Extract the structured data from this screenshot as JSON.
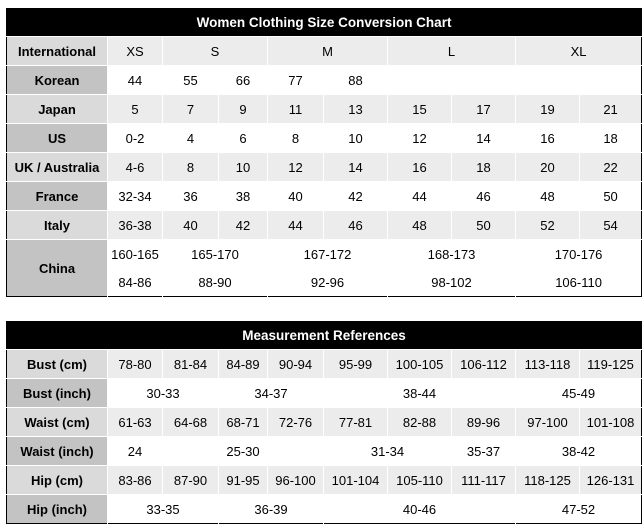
{
  "size_chart": {
    "title": "Women Clothing Size Conversion Chart",
    "rows": [
      {
        "label": "International",
        "values": [
          "XS",
          "S",
          "M",
          "L",
          "XL"
        ]
      },
      {
        "label": "Korean",
        "values": [
          "44",
          "55",
          "66",
          "77",
          "88",
          "",
          "",
          "",
          ""
        ]
      },
      {
        "label": "Japan",
        "values": [
          "5",
          "7",
          "9",
          "11",
          "13",
          "15",
          "17",
          "19",
          "21"
        ]
      },
      {
        "label": "US",
        "values": [
          "0-2",
          "4",
          "6",
          "8",
          "10",
          "12",
          "14",
          "16",
          "18"
        ]
      },
      {
        "label": "UK / Australia",
        "values": [
          "4-6",
          "8",
          "10",
          "12",
          "14",
          "16",
          "18",
          "20",
          "22"
        ]
      },
      {
        "label": "France",
        "values": [
          "32-34",
          "36",
          "38",
          "40",
          "42",
          "44",
          "46",
          "48",
          "50"
        ]
      },
      {
        "label": "Italy",
        "values": [
          "36-38",
          "40",
          "42",
          "44",
          "46",
          "48",
          "50",
          "52",
          "54"
        ]
      },
      {
        "label": "China",
        "values": [
          "160-165",
          "165-170",
          "167-172",
          "168-173",
          "170-176"
        ],
        "values2": [
          "84-86",
          "88-90",
          "92-96",
          "98-102",
          "106-110"
        ]
      }
    ]
  },
  "measurements": {
    "title": "Measurement References",
    "rows": [
      {
        "label": "Bust (cm)",
        "values": [
          "78-80",
          "81-84",
          "84-89",
          "90-94",
          "95-99",
          "100-105",
          "106-112",
          "113-118",
          "119-125"
        ]
      },
      {
        "label": "Bust (inch)",
        "values": [
          "30-33",
          "34-37",
          "38-44",
          "45-49"
        ]
      },
      {
        "label": "Waist (cm)",
        "values": [
          "61-63",
          "64-68",
          "68-71",
          "72-76",
          "77-81",
          "82-88",
          "89-96",
          "97-100",
          "101-108"
        ]
      },
      {
        "label": "Waist (inch)",
        "values": [
          "24",
          "25-30",
          "31-34",
          "35-37",
          "38-42"
        ]
      },
      {
        "label": "Hip (cm)",
        "values": [
          "83-86",
          "87-90",
          "91-95",
          "96-100",
          "101-104",
          "105-110",
          "111-117",
          "118-125",
          "126-131"
        ]
      },
      {
        "label": "Hip (inch)",
        "values": [
          "33-35",
          "36-39",
          "40-46",
          "47-52"
        ]
      }
    ]
  }
}
